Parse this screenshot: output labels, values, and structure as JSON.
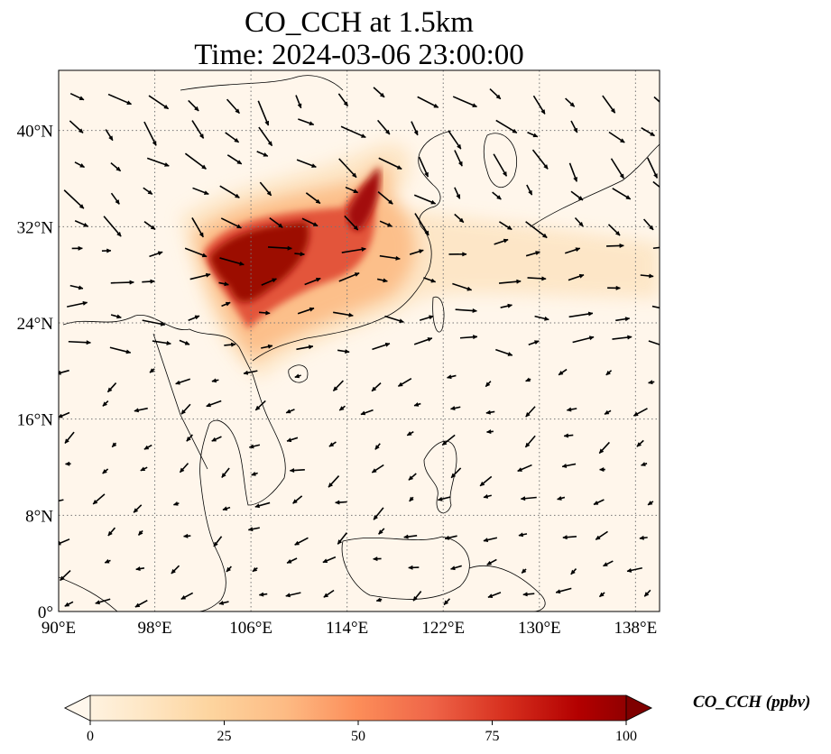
{
  "title": {
    "line1": "CO_CCH at 1.5km",
    "line2": "Time: 2024-03-06 23:00:00"
  },
  "map": {
    "extent": {
      "lon": [
        90,
        140
      ],
      "lat": [
        0,
        45
      ]
    },
    "lon_ticks": [
      {
        "v": 90,
        "label": "90°E"
      },
      {
        "v": 98,
        "label": "98°E"
      },
      {
        "v": 106,
        "label": "106°E"
      },
      {
        "v": 114,
        "label": "114°E"
      },
      {
        "v": 122,
        "label": "122°E"
      },
      {
        "v": 130,
        "label": "130°E"
      },
      {
        "v": 138,
        "label": "138°E"
      }
    ],
    "lat_ticks": [
      {
        "v": 0,
        "label": "0°"
      },
      {
        "v": 8,
        "label": "8°N"
      },
      {
        "v": 16,
        "label": "16°N"
      },
      {
        "v": 24,
        "label": "24°N"
      },
      {
        "v": 32,
        "label": "32°N"
      },
      {
        "v": 40,
        "label": "40°N"
      }
    ],
    "gridlines": true,
    "plume_regions": [
      {
        "lon": 109,
        "lat": 30,
        "value": 95
      },
      {
        "lon": 105.5,
        "lat": 29,
        "value": 90
      },
      {
        "lon": 108,
        "lat": 26,
        "value": 80
      },
      {
        "lon": 112,
        "lat": 30,
        "value": 70
      },
      {
        "lon": 116,
        "lat": 33,
        "value": 75
      },
      {
        "lon": 120,
        "lat": 27,
        "value": 30
      },
      {
        "lon": 126,
        "lat": 28,
        "value": 15
      }
    ]
  },
  "colorbar": {
    "label": "CO_CCH (ppbv)",
    "range": [
      0,
      100
    ],
    "ticks": [
      {
        "v": 0,
        "label": "0"
      },
      {
        "v": 25,
        "label": "25"
      },
      {
        "v": 50,
        "label": "50"
      },
      {
        "v": 75,
        "label": "75"
      },
      {
        "v": 100,
        "label": "100"
      }
    ],
    "colors": [
      "#fff7ec",
      "#fee8c8",
      "#fdd49e",
      "#fdbb84",
      "#fc8d59",
      "#ef6548",
      "#d7301f",
      "#b30000",
      "#7f0000"
    ]
  }
}
